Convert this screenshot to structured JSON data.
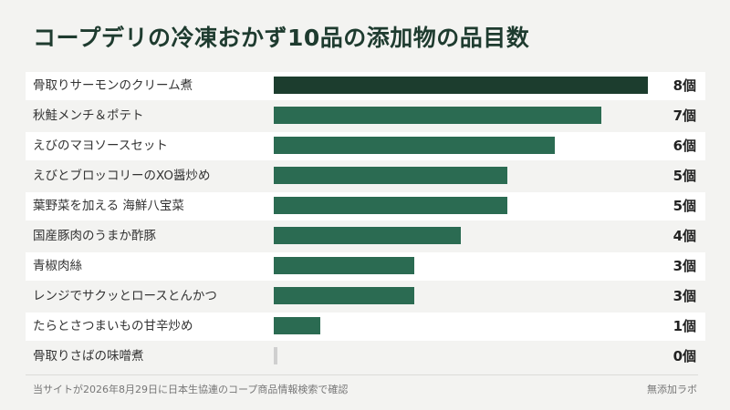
{
  "chart_data": {
    "type": "bar",
    "orientation": "horizontal",
    "title": "コープデリの冷凍おかず10品の添加物の品目数",
    "categories": [
      "骨取りサーモンのクリーム煮",
      "秋鮭メンチ＆ポテト",
      "えびのマヨソースセット",
      "えびとブロッコリーのXO醤炒め",
      "葉野菜を加える 海鮮八宝菜",
      "国産豚肉のうまか酢豚",
      "青椒肉絲",
      "レンジでサクッとロースとんかつ",
      "たらとさつまいもの甘辛炒め",
      "骨取りさばの味噌煮"
    ],
    "values": [
      8,
      7,
      6,
      5,
      5,
      4,
      3,
      3,
      1,
      0
    ],
    "value_labels": [
      "8個",
      "7個",
      "6個",
      "5個",
      "5個",
      "4個",
      "3個",
      "3個",
      "1個",
      "0個"
    ],
    "xlim": [
      0,
      8
    ],
    "grid": false,
    "colors": {
      "highest": "#1c3d2e",
      "default": "#2b6b52",
      "zero": "#cfcfcf"
    }
  },
  "footer": {
    "source": "当サイトが2026年8月29日に日本生協連のコープ商品情報検索で確認",
    "brand": "無添加ラボ"
  }
}
